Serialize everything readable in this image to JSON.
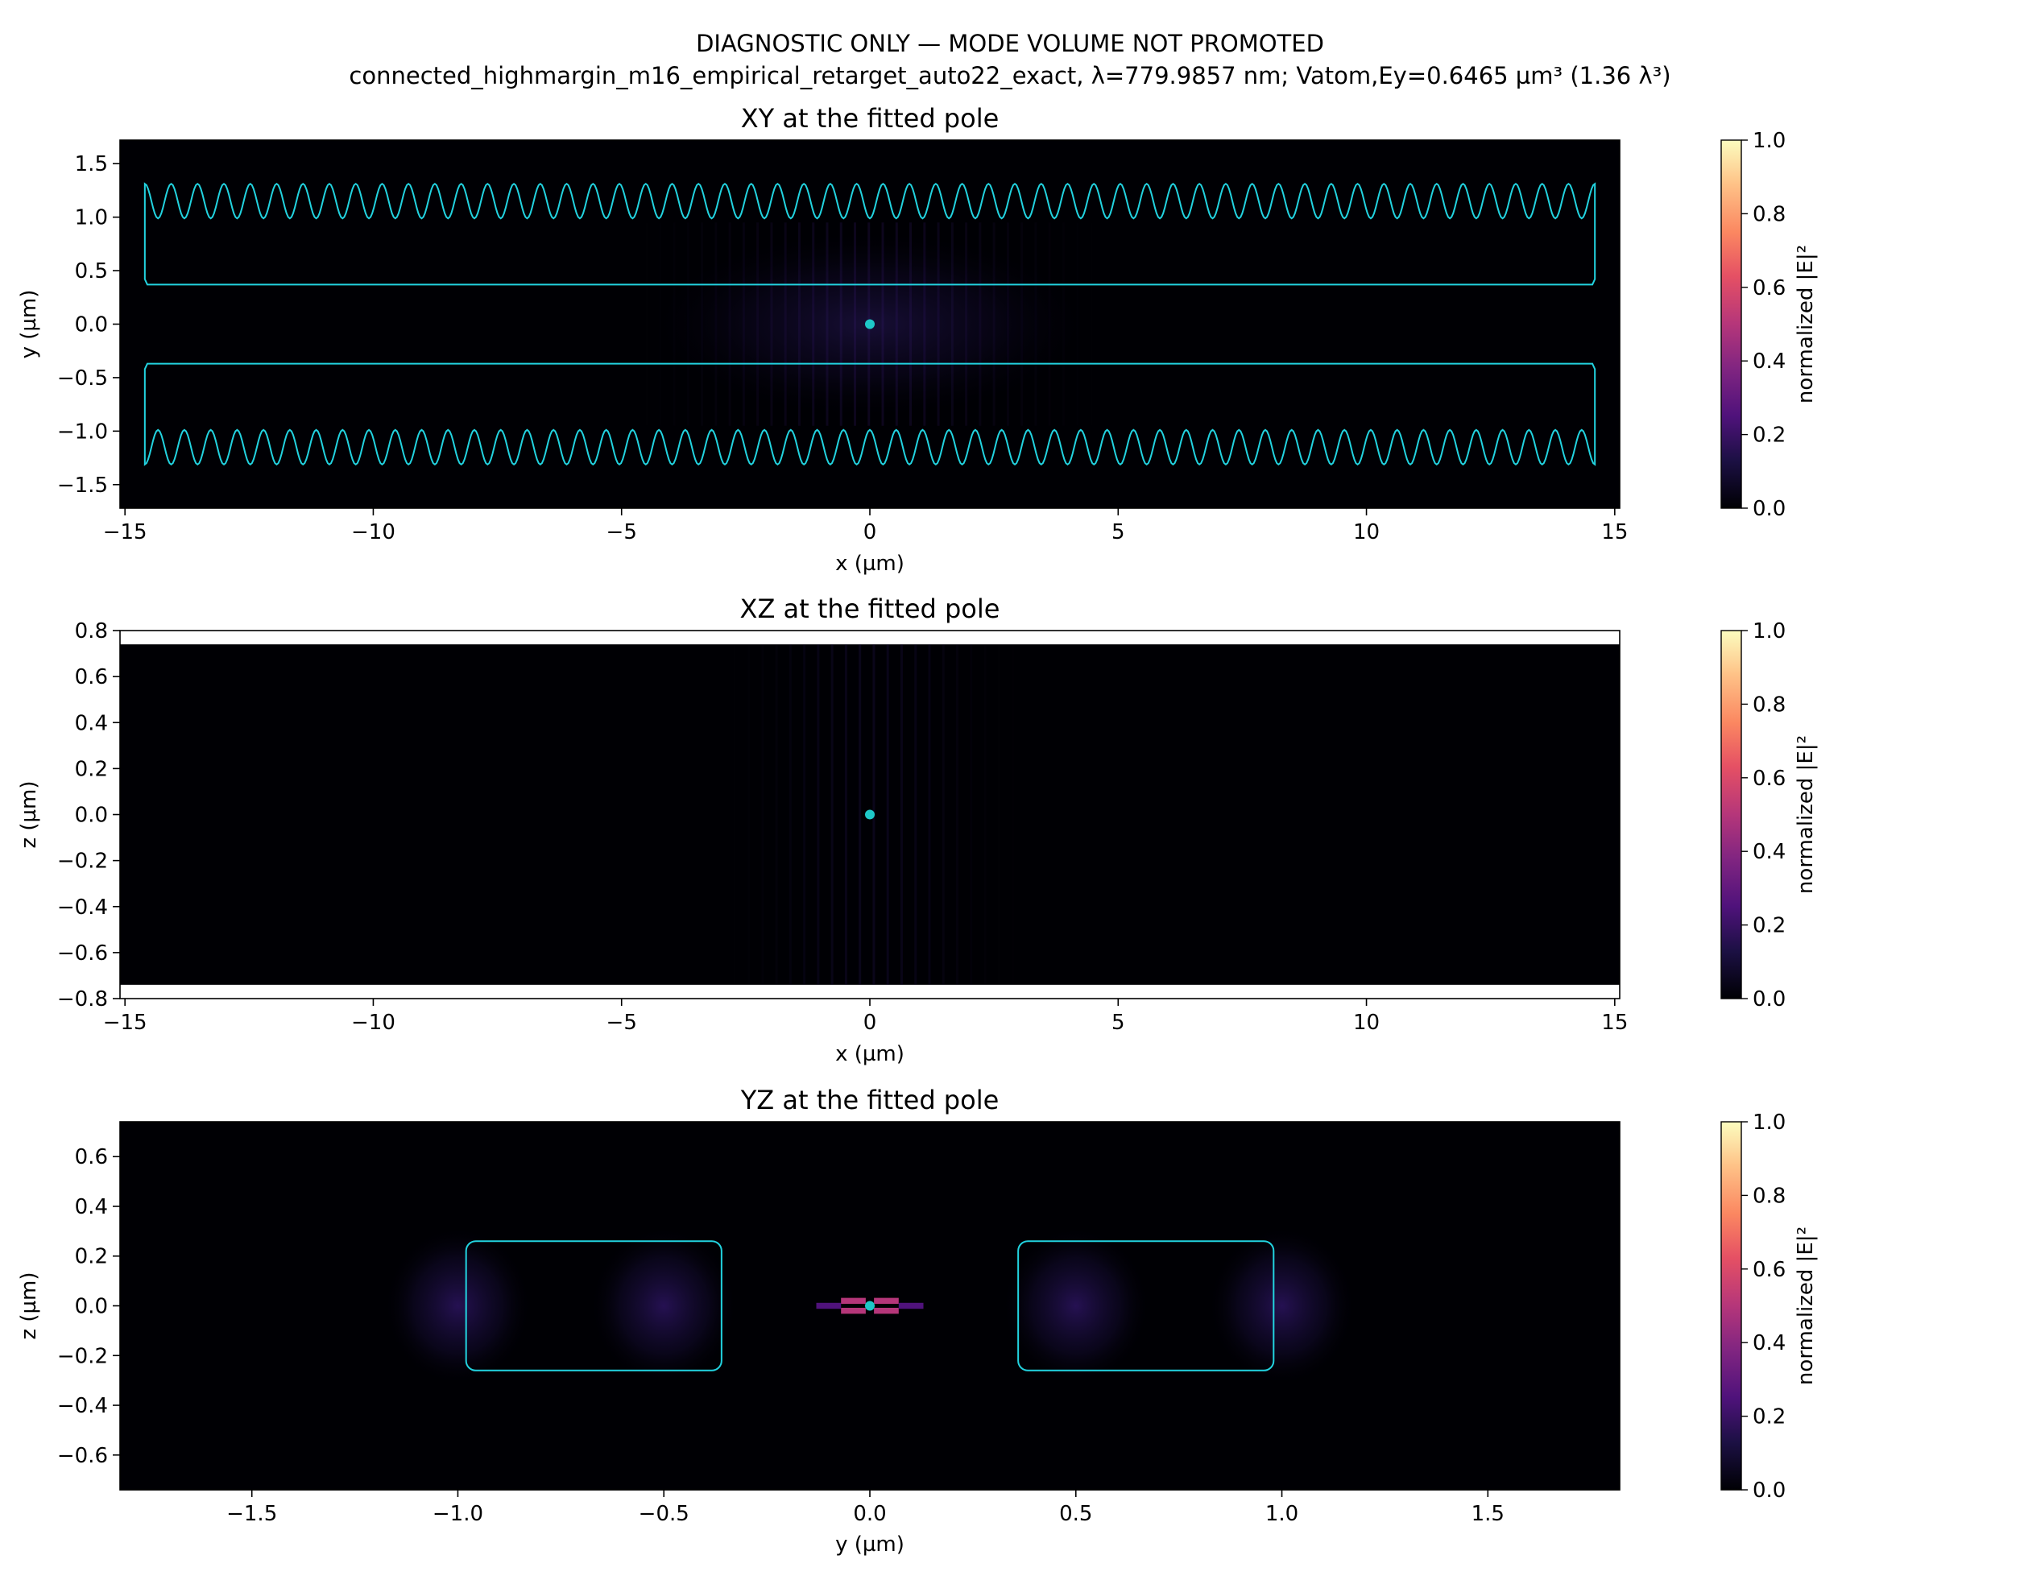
{
  "suptitle": {
    "line1": "DIAGNOSTIC ONLY — MODE VOLUME NOT PROMOTED",
    "line2": "connected_highmargin_m16_empirical_retarget_auto22_exact, λ=779.9857 nm; Vatom,Ey=0.6465 µm³ (1.36 λ³)"
  },
  "colors": {
    "outline": "#22d3e0",
    "field_background": "#000004",
    "marker": "#1ec8c8",
    "colormap": "magma"
  },
  "chart_data": [
    {
      "type": "heatmap",
      "title": "XY at the fitted pole",
      "xlabel": "x (µm)",
      "ylabel": "y (µm)",
      "xlim": [
        -15.1,
        15.1
      ],
      "ylim": [
        -1.72,
        1.72
      ],
      "xticks": [
        -15,
        -10,
        -5,
        0,
        5,
        10,
        15
      ],
      "xtick_labels": [
        "−15",
        "−10",
        "−5",
        "0",
        "5",
        "10",
        "15"
      ],
      "yticks": [
        -1.5,
        -1.0,
        -0.5,
        0.0,
        0.5,
        1.0,
        1.5
      ],
      "ytick_labels": [
        "−1.5",
        "−1.0",
        "−0.5",
        "0.0",
        "0.5",
        "1.0",
        "1.5"
      ],
      "colorbar": {
        "label": "normalized |E|²",
        "range": [
          0,
          1
        ],
        "ticks": [
          "0.0",
          "0.2",
          "0.4",
          "0.6",
          "0.8",
          "1.0"
        ]
      },
      "marker": {
        "x": 0,
        "y": 0
      },
      "structures": [
        {
          "name": "upper waveguide",
          "x": [
            -14.6,
            14.6
          ],
          "y_inner": 0.37,
          "y_outer": 0.98,
          "corrugation_amplitude": 0.17,
          "periods": 55
        },
        {
          "name": "lower waveguide",
          "x": [
            -14.6,
            14.6
          ],
          "y_inner": -0.37,
          "y_outer": -0.98,
          "corrugation_amplitude": 0.17,
          "periods": 55
        }
      ],
      "field_peak": {
        "x": 0,
        "y": 0,
        "relative_intensity": 0.08
      }
    },
    {
      "type": "heatmap",
      "title": "XZ at the fitted pole",
      "xlabel": "x (µm)",
      "ylabel": "z (µm)",
      "xlim": [
        -15.1,
        15.1
      ],
      "ylim": [
        -0.8,
        0.8
      ],
      "data_zlim": [
        -0.74,
        0.74
      ],
      "xticks": [
        -15,
        -10,
        -5,
        0,
        5,
        10,
        15
      ],
      "xtick_labels": [
        "−15",
        "−10",
        "−5",
        "0",
        "5",
        "10",
        "15"
      ],
      "yticks": [
        -0.8,
        -0.6,
        -0.4,
        -0.2,
        0.0,
        0.2,
        0.4,
        0.6,
        0.8
      ],
      "ytick_labels": [
        "−0.8",
        "−0.6",
        "−0.4",
        "−0.2",
        "0.0",
        "0.2",
        "0.4",
        "0.6",
        "0.8"
      ],
      "colorbar": {
        "label": "normalized |E|²",
        "range": [
          0,
          1
        ],
        "ticks": [
          "0.0",
          "0.2",
          "0.4",
          "0.6",
          "0.8",
          "1.0"
        ]
      },
      "marker": {
        "x": 0,
        "y": 0
      }
    },
    {
      "type": "heatmap",
      "title": "YZ at the fitted pole",
      "xlabel": "y (µm)",
      "ylabel": "z (µm)",
      "xlim": [
        -1.82,
        1.82
      ],
      "ylim": [
        -0.74,
        0.74
      ],
      "xticks": [
        -1.5,
        -1.0,
        -0.5,
        0.0,
        0.5,
        1.0,
        1.5
      ],
      "xtick_labels": [
        "−1.5",
        "−1.0",
        "−0.5",
        "0.0",
        "0.5",
        "1.0",
        "1.5"
      ],
      "yticks": [
        -0.6,
        -0.4,
        -0.2,
        0.0,
        0.2,
        0.4,
        0.6
      ],
      "ytick_labels": [
        "−0.6",
        "−0.4",
        "−0.2",
        "0.0",
        "0.2",
        "0.4",
        "0.6"
      ],
      "colorbar": {
        "label": "normalized |E|²",
        "range": [
          0,
          1
        ],
        "ticks": [
          "0.0",
          "0.2",
          "0.4",
          "0.6",
          "0.8",
          "1.0"
        ]
      },
      "marker": {
        "x": 0,
        "y": 0
      },
      "structures": [
        {
          "name": "left waveguide",
          "y": [
            -0.98,
            -0.36
          ],
          "z": [
            -0.26,
            0.26
          ]
        },
        {
          "name": "right waveguide",
          "y": [
            0.36,
            0.98
          ],
          "z": [
            -0.26,
            0.26
          ]
        }
      ],
      "hotspots": [
        {
          "y": -0.04,
          "z": 0.02,
          "intensity": 0.55
        },
        {
          "y": 0.04,
          "z": 0.02,
          "intensity": 0.55
        },
        {
          "y": -0.04,
          "z": -0.02,
          "intensity": 0.55
        },
        {
          "y": 0.04,
          "z": -0.02,
          "intensity": 0.55
        },
        {
          "y": -0.1,
          "z": 0.0,
          "intensity": 0.25
        },
        {
          "y": 0.1,
          "z": 0.0,
          "intensity": 0.25
        }
      ]
    }
  ]
}
